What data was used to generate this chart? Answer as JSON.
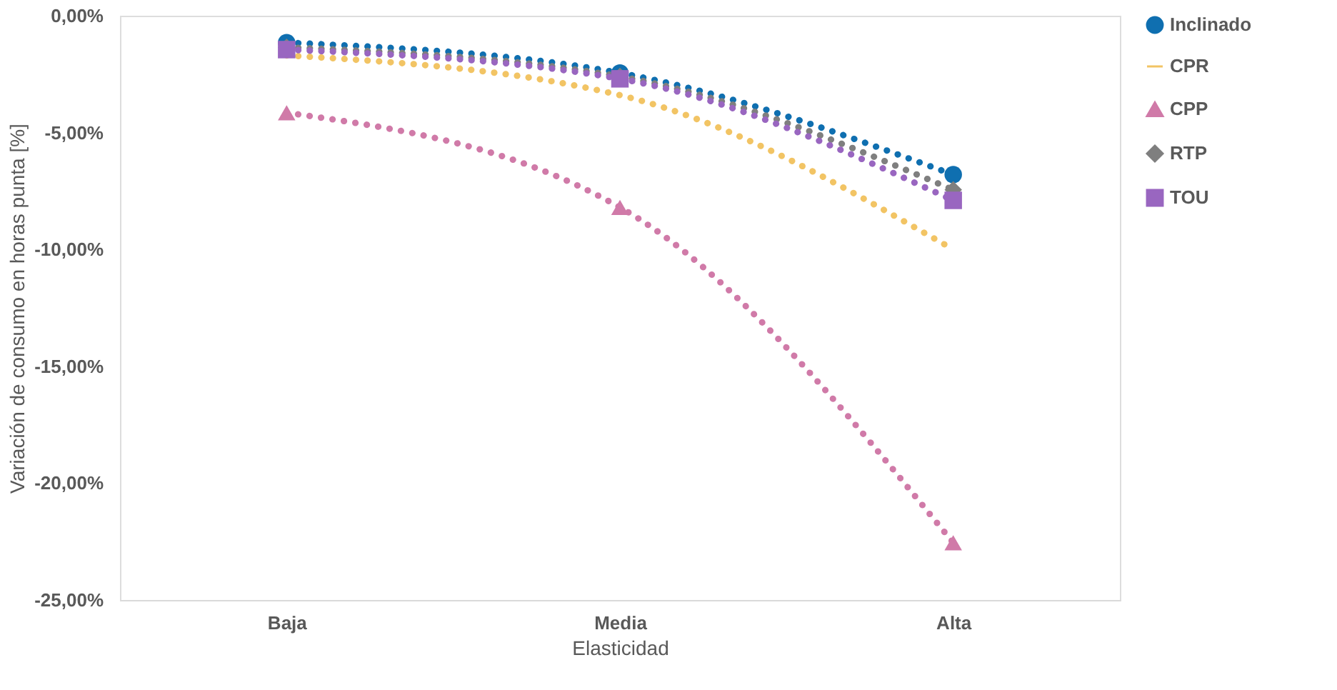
{
  "chart_data": {
    "type": "line",
    "xlabel": "Elasticidad",
    "ylabel": "Variación de consumo en horas punta [%]",
    "categories": [
      "Baja",
      "Media",
      "Alta"
    ],
    "series": [
      {
        "name": "Inclinado",
        "color": "#0f6fb0",
        "marker": "circle",
        "values": [
          -1.15,
          -2.45,
          -6.8
        ]
      },
      {
        "name": "CPR",
        "color": "#f2c464",
        "marker": "none",
        "values": [
          -1.7,
          -3.4,
          -10.0
        ]
      },
      {
        "name": "CPP",
        "color": "#d07aa8",
        "marker": "triangle",
        "values": [
          -4.15,
          -8.2,
          -22.55
        ]
      },
      {
        "name": "RTP",
        "color": "#7f7f7f",
        "marker": "diamond",
        "values": [
          -1.35,
          -2.6,
          -7.45
        ]
      },
      {
        "name": "TOU",
        "color": "#9966c0",
        "marker": "square",
        "values": [
          -1.45,
          -2.7,
          -7.9
        ]
      }
    ],
    "ylim": [
      -25,
      0
    ],
    "yticks": [
      {
        "value": -25,
        "label": "-25,00%"
      },
      {
        "value": -20,
        "label": "-20,00%"
      },
      {
        "value": -15,
        "label": "-15,00%"
      },
      {
        "value": -10,
        "label": "-10,00%"
      },
      {
        "value": -5,
        "label": "-5,00%"
      },
      {
        "value": 0,
        "label": "0,00%"
      }
    ],
    "line_style": "dotted",
    "grid": false,
    "legend": "right"
  }
}
